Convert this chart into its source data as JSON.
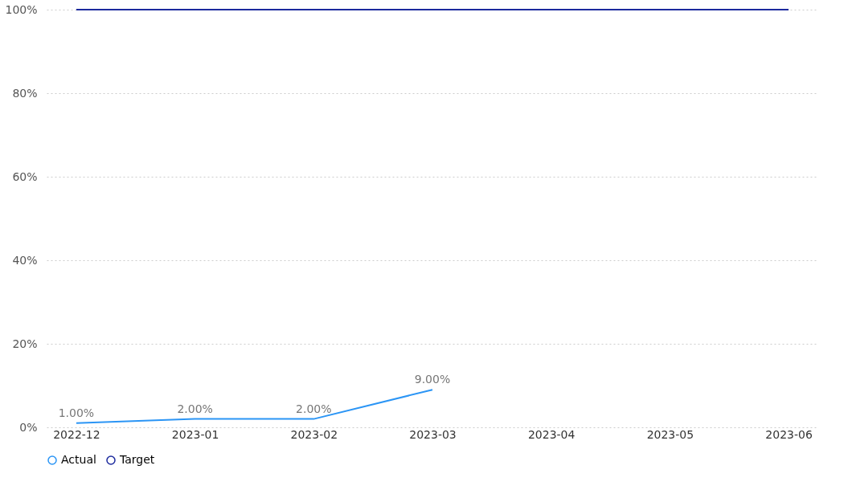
{
  "chart_data": {
    "type": "line",
    "categories": [
      "2022-12",
      "2023-01",
      "2023-02",
      "2023-03",
      "2023-04",
      "2023-05",
      "2023-06"
    ],
    "series": [
      {
        "name": "Actual",
        "color": "#2b95f5",
        "values": [
          1,
          2,
          2,
          9,
          null,
          null,
          null
        ],
        "value_labels": [
          "1.00%",
          "2.00%",
          "2.00%",
          "9.00%",
          null,
          null,
          null
        ]
      },
      {
        "name": "Target",
        "color": "#1c2a9e",
        "values": [
          100,
          100,
          100,
          100,
          100,
          100,
          100
        ]
      }
    ],
    "ylim": [
      0,
      100
    ],
    "yticks": [
      {
        "value": 0,
        "label": "0%"
      },
      {
        "value": 20,
        "label": "20%"
      },
      {
        "value": 40,
        "label": "40%"
      },
      {
        "value": 60,
        "label": "60%"
      },
      {
        "value": 80,
        "label": "80%"
      },
      {
        "value": 100,
        "label": "100%"
      }
    ],
    "grid": "y",
    "legend": "bottom",
    "marker": "none",
    "line_style": "solid"
  }
}
